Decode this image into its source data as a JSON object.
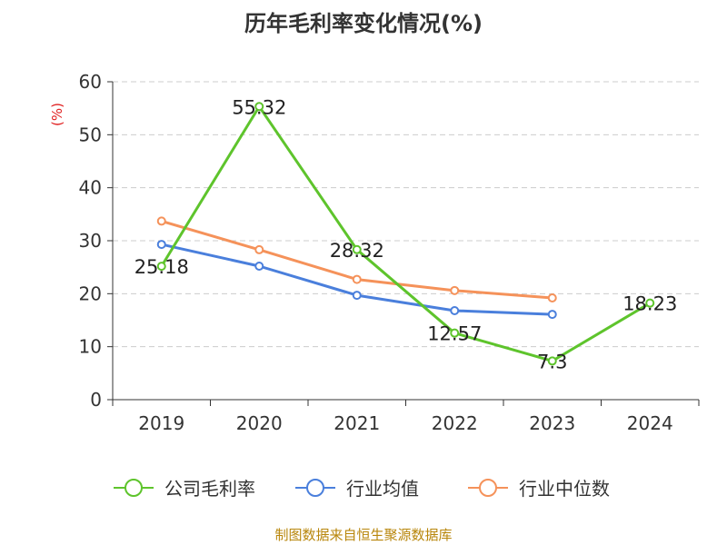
{
  "chart_data": {
    "type": "line",
    "title": "历年毛利率变化情况(%)",
    "ylabel": "(%)",
    "xlabel": "",
    "categories": [
      "2019",
      "2020",
      "2021",
      "2022",
      "2023",
      "2024"
    ],
    "ylim": [
      0,
      60
    ],
    "yticks": [
      0,
      10,
      20,
      30,
      40,
      50,
      60
    ],
    "grid": "horizontal dashed",
    "legend_position": "bottom",
    "series": [
      {
        "name": "公司毛利率",
        "color": "#5ec42c",
        "values": [
          25.18,
          55.32,
          28.32,
          12.57,
          7.3,
          18.23
        ],
        "labels": [
          "25.18",
          "55.32",
          "28.32",
          "12.57",
          "7.3",
          "18.23"
        ]
      },
      {
        "name": "行业均值",
        "color": "#4a7fdc",
        "values": [
          29.3,
          25.2,
          19.7,
          16.8,
          16.1,
          null
        ]
      },
      {
        "name": "行业中位数",
        "color": "#f5925a",
        "values": [
          33.7,
          28.3,
          22.7,
          20.6,
          19.2,
          null
        ]
      }
    ]
  },
  "source": "制图数据来自恒生聚源数据库",
  "colors": {
    "label_red": "#e02020",
    "axis": "#333333",
    "grid": "#cccccc"
  }
}
